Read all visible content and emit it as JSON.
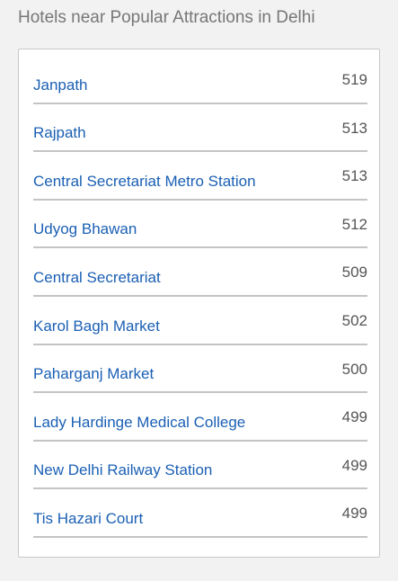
{
  "widget": {
    "title": "Hotels near Popular Attractions in Delhi"
  },
  "attractions": [
    {
      "name": "Janpath",
      "count": "519"
    },
    {
      "name": "Rajpath",
      "count": "513"
    },
    {
      "name": "Central Secretariat Metro Station",
      "count": "513"
    },
    {
      "name": "Udyog Bhawan",
      "count": "512"
    },
    {
      "name": "Central Secretariat",
      "count": "509"
    },
    {
      "name": "Karol Bagh Market",
      "count": "502"
    },
    {
      "name": "Paharganj Market",
      "count": "500"
    },
    {
      "name": "Lady Hardinge Medical College",
      "count": "499"
    },
    {
      "name": "New Delhi Railway Station",
      "count": "499"
    },
    {
      "name": "Tis Hazari Court",
      "count": "499"
    }
  ],
  "colors": {
    "link": "#1a5fb4",
    "count": "#555555",
    "title": "#777777",
    "background": "#f2f2f2"
  }
}
